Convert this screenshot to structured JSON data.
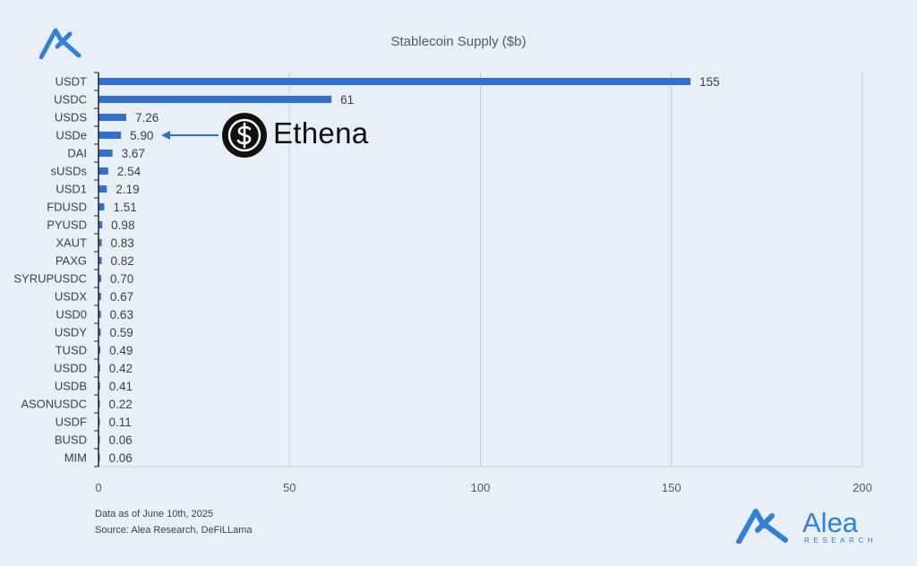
{
  "chart_data": {
    "type": "bar",
    "orientation": "horizontal",
    "title": "Stablecoin Supply ($b)",
    "xlabel": "",
    "ylabel": "",
    "xlim": [
      0,
      200
    ],
    "xticks": [
      "0",
      "50",
      "100",
      "150",
      "200"
    ],
    "grid": true,
    "bar_color": "#2f6fd6",
    "categories": [
      "USDT",
      "USDC",
      "USDS",
      "USDe",
      "DAI",
      "sUSDs",
      "USD1",
      "FDUSD",
      "PYUSD",
      "XAUT",
      "PAXG",
      "SYRUPUSDC",
      "USDX",
      "USD0",
      "USDY",
      "TUSD",
      "USDD",
      "USDB",
      "ASONUSDC",
      "USDF",
      "BUSD",
      "MIM"
    ],
    "values": [
      155,
      61,
      7.26,
      5.9,
      3.67,
      2.54,
      2.19,
      1.51,
      0.98,
      0.83,
      0.82,
      0.7,
      0.67,
      0.63,
      0.59,
      0.49,
      0.42,
      0.41,
      0.22,
      0.11,
      0.06,
      0.06
    ],
    "value_labels": [
      "155",
      "61",
      "7.26",
      "5.90",
      "3.67",
      "2.54",
      "2.19",
      "1.51",
      "0.98",
      "0.83",
      "0.82",
      "0.70",
      "0.67",
      "0.63",
      "0.59",
      "0.49",
      "0.42",
      "0.41",
      "0.22",
      "0.11",
      "0.06",
      "0.06"
    ],
    "annotation": {
      "target": "USDe",
      "label": "Ethena",
      "icon": "dollar-coin-icon"
    }
  },
  "footnotes": {
    "date": "Data as of June 10th, 2025",
    "source": "Source: Alea Research, DeFiLLama"
  },
  "brand": {
    "name": "Alea",
    "subtitle": "RESEARCH",
    "logo_icon": "alea-logo-icon",
    "color": "#2f80d6"
  }
}
